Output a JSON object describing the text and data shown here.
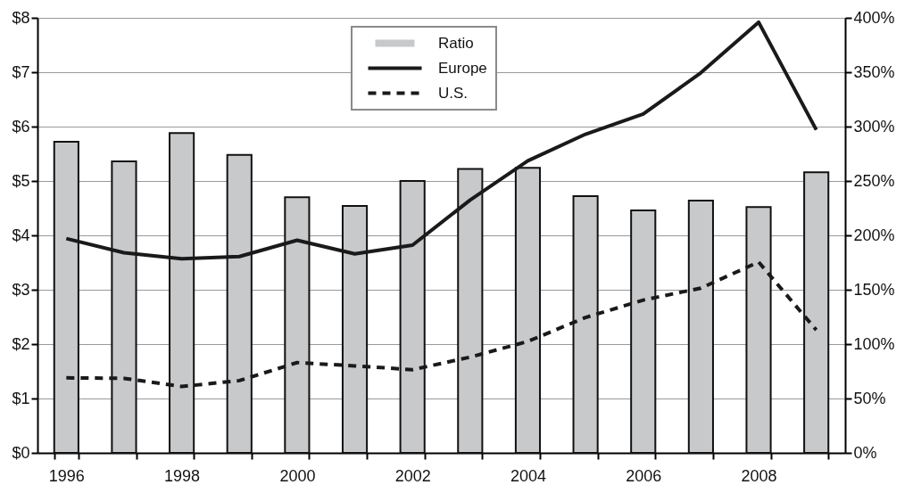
{
  "chart_data": {
    "type": "bar",
    "categories": [
      "1996",
      null,
      "1998",
      null,
      "2000",
      null,
      "2002",
      null,
      "2004",
      null,
      "2006",
      null,
      "2008",
      null
    ],
    "series": [
      {
        "name": "Ratio",
        "axis": "y2",
        "color": "#c8c9cb",
        "values": [
          286,
          268,
          294,
          274,
          235,
          227,
          250,
          261,
          262,
          236,
          223,
          232,
          226,
          258
        ]
      },
      {
        "name": "Europe",
        "type": "line",
        "color": "#1a1a1a",
        "line_style": "solid",
        "values": [
          3.94,
          3.68,
          3.57,
          3.61,
          3.91,
          3.66,
          3.82,
          4.65,
          5.37,
          5.86,
          6.23,
          6.99,
          7.92,
          5.94
        ]
      },
      {
        "name": "U.S.",
        "type": "line",
        "color": "#1a1a1a",
        "line_style": "dashed",
        "values": [
          1.38,
          1.37,
          1.22,
          1.33,
          1.66,
          1.6,
          1.53,
          1.76,
          2.05,
          2.49,
          2.81,
          3.03,
          3.51,
          2.26
        ]
      }
    ],
    "ylim": [
      0,
      8
    ],
    "yticks": [
      {
        "value": 0,
        "label": "$0"
      },
      {
        "value": 1,
        "label": "$1"
      },
      {
        "value": 2,
        "label": "$2"
      },
      {
        "value": 3,
        "label": "$3"
      },
      {
        "value": 4,
        "label": "$4"
      },
      {
        "value": 5,
        "label": "$5"
      },
      {
        "value": 6,
        "label": "$6"
      },
      {
        "value": 7,
        "label": "$7"
      },
      {
        "value": 8,
        "label": "$8"
      }
    ],
    "y2lim": [
      0,
      400
    ],
    "y2ticks": [
      {
        "value": 0,
        "label": "0%"
      },
      {
        "value": 50,
        "label": "50%"
      },
      {
        "value": 100,
        "label": "100%"
      },
      {
        "value": 150,
        "label": "150%"
      },
      {
        "value": 200,
        "label": "200%"
      },
      {
        "value": 250,
        "label": "250%"
      },
      {
        "value": 300,
        "label": "300%"
      },
      {
        "value": 350,
        "label": "350%"
      },
      {
        "value": 400,
        "label": "400%"
      }
    ],
    "grid": "y",
    "legend": "top"
  }
}
